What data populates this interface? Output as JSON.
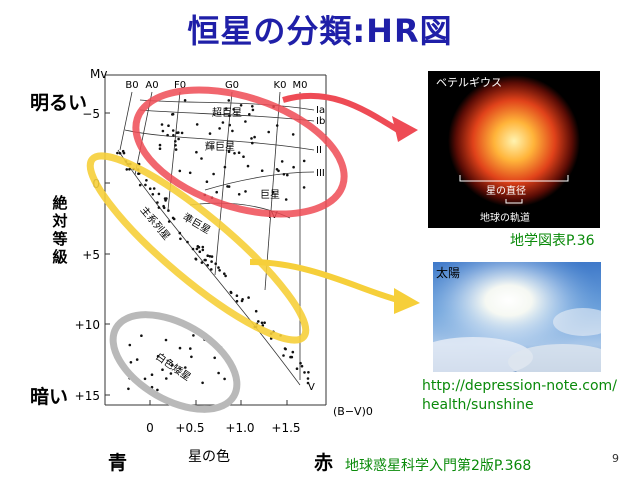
{
  "title": "恒星の分類:HR図",
  "labels": {
    "bright": "明るい",
    "dark": "暗い",
    "blue": "青",
    "red": "赤",
    "abs_mag": "絶対等級",
    "star_color": "星の色"
  },
  "hr_diagram": {
    "y_axis_label": "Mv",
    "x_axis_label": "(B−V)0",
    "y_ticks": [
      "−5",
      "0",
      "+5",
      "+10",
      "+15"
    ],
    "x_ticks": [
      "0",
      "+0.5",
      "+1.0",
      "+1.5"
    ],
    "spectral_types": [
      "B0",
      "A0",
      "F0",
      "G0",
      "K0",
      "M0"
    ],
    "luminosity_classes": [
      "Ia",
      "Ib",
      "II",
      "III",
      "IV",
      "V"
    ],
    "regions": {
      "supergiant": "超巨星",
      "bright_giant": "輝巨星",
      "giant": "巨星",
      "subgiant": "準巨星",
      "main_sequence": "主系列星",
      "white_dwarf": "白色矮星"
    }
  },
  "betelgeuse": {
    "name": "ベテルギウス",
    "diameter_label": "星の直径",
    "orbit_label": "地球の軌道",
    "source": "地学図表P.36"
  },
  "sun": {
    "name": "太陽",
    "url_line1": "http://depression-note.com/",
    "url_line2": "health/sunshine"
  },
  "source_text": "地球惑星科学入門第2版P.368",
  "page_number": "9",
  "colors": {
    "title": "#1f1fa8",
    "red_highlight": "#ee4b55",
    "yellow_highlight": "#f6cf3a",
    "gray_highlight": "#b9b9b9",
    "green_text": "#0a8a0a"
  }
}
